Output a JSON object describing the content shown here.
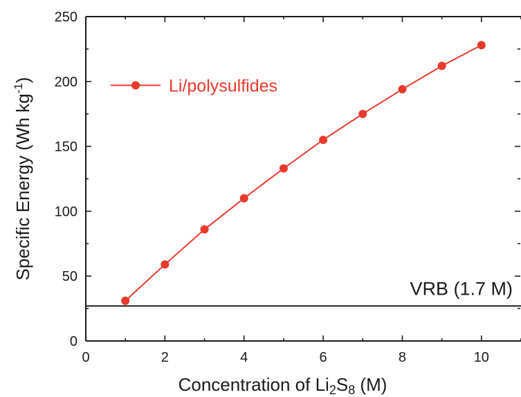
{
  "chart_data": {
    "type": "line",
    "xlabel": "Concentration of Li2S8 (M)",
    "xlabel_parts": {
      "prefix": "Concentration of Li",
      "sub1": "2",
      "mid": "S",
      "sub2": "8",
      "suffix": " (M)"
    },
    "ylabel": "Specific Energy (Wh kg-1)",
    "ylabel_parts": {
      "prefix": "Specific Energy (Wh kg",
      "sup": "-1",
      "suffix": ")"
    },
    "xlim": [
      0,
      11
    ],
    "ylim": [
      0,
      250
    ],
    "x_ticks": [
      "0",
      "2",
      "4",
      "6",
      "8",
      "10"
    ],
    "y_ticks": [
      "0",
      "50",
      "100",
      "150",
      "200",
      "250"
    ],
    "grid": false,
    "legend_position": "top-left",
    "series": [
      {
        "name": "Li/polysulfides",
        "color": "#e8392b",
        "marker": "circle",
        "x": [
          1,
          2,
          3,
          4,
          5,
          6,
          7,
          8,
          9,
          10
        ],
        "y": [
          31,
          59,
          86,
          110,
          133,
          155,
          175,
          194,
          212,
          228
        ]
      }
    ],
    "reference_lines": [
      {
        "label": "VRB (1.7 M)",
        "y": 27,
        "color": "#1a1a1a"
      }
    ]
  }
}
